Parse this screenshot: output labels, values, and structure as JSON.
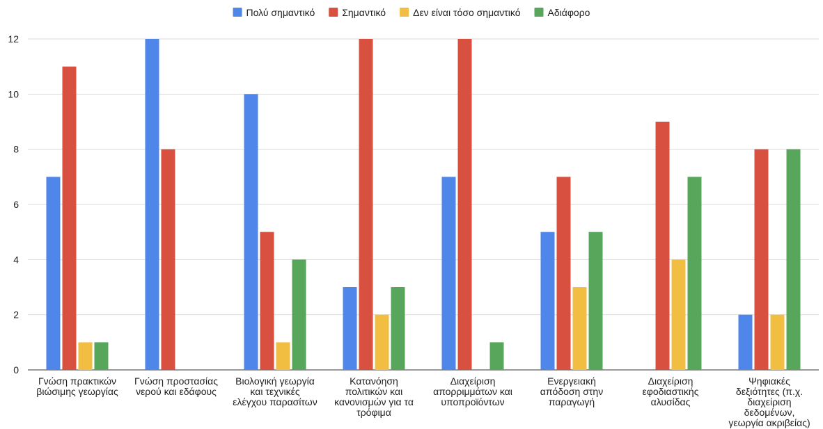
{
  "chart_data": {
    "type": "bar",
    "categories": [
      [
        "Γνώση πρακτικών",
        "βιώσιμης γεωργίας"
      ],
      [
        "Γνώση προστασίας",
        "νερού και εδάφους"
      ],
      [
        "Βιολογική γεωργία",
        "και τεχνικές",
        "ελέγχου παρασίτων"
      ],
      [
        "Κατανόηση",
        "πολιτικών και",
        "κανονισμών για τα",
        "τρόφιμα"
      ],
      [
        "Διαχείριση",
        "απορριμμάτων και",
        "υποπροϊόντων"
      ],
      [
        "Ενεργειακή",
        "απόδοση στην",
        "παραγωγή"
      ],
      [
        "Διαχείριση",
        "εφοδιαστικής",
        "αλυσίδας"
      ],
      [
        "Ψηφιακές",
        "δεξιότητες (π.χ.",
        "διαχείριση",
        "δεδομένων,",
        "γεωργία ακριβείας)"
      ]
    ],
    "series": [
      {
        "name": "Πολύ σημαντικό",
        "color": "#4e86ea",
        "values": [
          7,
          12,
          10,
          3,
          7,
          5,
          0,
          2
        ]
      },
      {
        "name": "Σημαντικό",
        "color": "#d85140",
        "values": [
          11,
          8,
          5,
          12,
          12,
          7,
          9,
          8
        ]
      },
      {
        "name": "Δεν είναι τόσο σημαντικό",
        "color": "#f2be42",
        "values": [
          1,
          0,
          1,
          2,
          0,
          3,
          4,
          2
        ]
      },
      {
        "name": "Αδιάφορο",
        "color": "#58a65c",
        "values": [
          1,
          0,
          4,
          3,
          1,
          5,
          7,
          8
        ]
      }
    ],
    "yticks": [
      "0",
      "2",
      "4",
      "6",
      "8",
      "10",
      "12"
    ],
    "ylim": [
      0,
      12
    ],
    "grid": true,
    "legend_position": "top-center",
    "title": "",
    "xlabel": "",
    "ylabel": ""
  }
}
